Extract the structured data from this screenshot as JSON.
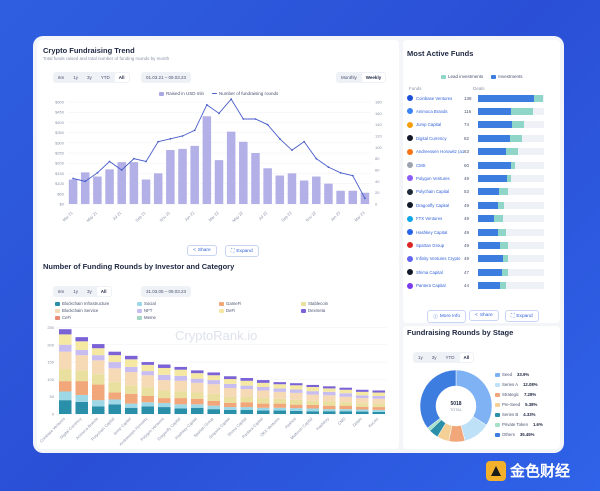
{
  "brand": {
    "name": "金色财经",
    "logo_icon": "golden-finance-logo-icon"
  },
  "watermark": "CryptoRank.io",
  "fundraising_trend": {
    "title": "Crypto Fundraising Trend",
    "subtitle": "Total funds raised and total number of funding rounds by month",
    "ranges": [
      "6m",
      "1y",
      "3y",
      "YTD",
      "All"
    ],
    "active_range": "All",
    "date_range": "01.03.21 – 09.03.23",
    "granularity": [
      "Monthly",
      "Weekly"
    ],
    "active_granularity": "Weekly",
    "share_label": "Share",
    "expand_label": "Expand",
    "legend": [
      "Raised in USD mln",
      "Number of fundraising rounds"
    ]
  },
  "funding_by_investor": {
    "title": "Number of Funding Rounds by Investor and Category",
    "ranges": [
      "6m",
      "1y",
      "3y",
      "All"
    ],
    "active_range": "All",
    "date_range": "31.03.05 – 09.03.23",
    "legend": [
      "Blockchain Infrastructure",
      "Social",
      "GameFi",
      "Stablecoin",
      "Blockchain Service",
      "NFT",
      "DeFi",
      "Dexmeta",
      "CeFi",
      "Meme"
    ]
  },
  "active_funds": {
    "title": "Most Active Funds",
    "legend": [
      "Lead investments",
      "Investments"
    ],
    "col_funds": "Funds",
    "col_deals": "Deals",
    "more_info_label": "More Info",
    "share_label": "Share",
    "expand_label": "Expand",
    "funds": [
      {
        "name": "Coinbase Ventures",
        "deals": "138",
        "lead": 0.85,
        "total": 0.98,
        "icon_color": "#1b4fd8"
      },
      {
        "name": "Animoca Brands",
        "deals": "116",
        "lead": 0.5,
        "total": 0.84,
        "icon_color": "#3b82f6"
      },
      {
        "name": "Jump Capital",
        "deals": "74",
        "lead": 0.52,
        "total": 0.7,
        "icon_color": "#f59e0b"
      },
      {
        "name": "Digital Currency",
        "deals": "82",
        "lead": 0.48,
        "total": 0.66,
        "icon_color": "#111827"
      },
      {
        "name": "Andreessen Horowitz (a16z)",
        "deals": "63",
        "lead": 0.42,
        "total": 0.6,
        "icon_color": "#f97316"
      },
      {
        "name": "CMS",
        "deals": "60",
        "lead": 0.5,
        "total": 0.56,
        "icon_color": "#9ca3af"
      },
      {
        "name": "Polygon Ventures",
        "deals": "49",
        "lead": 0.44,
        "total": 0.5,
        "icon_color": "#8b5cf6"
      },
      {
        "name": "Polychain Capital",
        "deals": "53",
        "lead": 0.32,
        "total": 0.46,
        "icon_color": "#1f2937"
      },
      {
        "name": "Dragonfly Capital",
        "deals": "49",
        "lead": 0.3,
        "total": 0.4,
        "icon_color": "#111827"
      },
      {
        "name": "FTX Ventures",
        "deals": "49",
        "lead": 0.24,
        "total": 0.38,
        "icon_color": "#0ea5e9"
      },
      {
        "name": "Hashkey Capital",
        "deals": "49",
        "lead": 0.3,
        "total": 0.42,
        "icon_color": "#2563eb"
      },
      {
        "name": "Spartan Group",
        "deals": "49",
        "lead": 0.34,
        "total": 0.46,
        "icon_color": "#dc2626"
      },
      {
        "name": "Infinity Ventures Crypto",
        "deals": "49",
        "lead": 0.38,
        "total": 0.46,
        "icon_color": "#6366f1"
      },
      {
        "name": "Shima Capital",
        "deals": "47",
        "lead": 0.36,
        "total": 0.46,
        "icon_color": "#111827"
      },
      {
        "name": "Pantera Capital",
        "deals": "44",
        "lead": 0.34,
        "total": 0.42,
        "icon_color": "#7c3aed"
      }
    ]
  },
  "rounds_by_stage": {
    "title": "Fundraising Rounds by Stage",
    "ranges": [
      "1y",
      "3y",
      "YTD",
      "All"
    ],
    "active_range": "All",
    "center_value": "5018",
    "center_label": "TOTAL",
    "stages": [
      {
        "name": "Seed",
        "pct": "33.9%",
        "value": 33.9,
        "color": "#7fb2f5"
      },
      {
        "name": "Series A",
        "pct": "12.08%",
        "value": 12.08,
        "color": "#bfe1f8"
      },
      {
        "name": "Strategic",
        "pct": "7.28%",
        "value": 7.28,
        "color": "#f2a77a"
      },
      {
        "name": "Pre-Seed",
        "pct": "5.38%",
        "value": 5.38,
        "color": "#f4cf96"
      },
      {
        "name": "Series B",
        "pct": "4.33%",
        "value": 4.33,
        "color": "#2a8fa8"
      },
      {
        "name": "Private Token",
        "pct": "1.6%",
        "value": 1.6,
        "color": "#a7e0c9"
      },
      {
        "name": "Others",
        "pct": "35.45%",
        "value": 35.45,
        "color": "#3d7de0"
      }
    ]
  },
  "chart_data": [
    {
      "type": "bar",
      "title": "Crypto Fundraising Trend",
      "y_left_ticks": [
        "$0",
        "$50",
        "$100",
        "$150",
        "$200",
        "$250",
        "$300",
        "$350",
        "$400",
        "$450",
        "$500"
      ],
      "y_right_ticks": [
        "0",
        "20",
        "40",
        "60",
        "80",
        "100",
        "120",
        "140",
        "160",
        "180"
      ],
      "categories": [
        "Mar 21",
        "Apr 21",
        "May 21",
        "Jun 21",
        "Jul 21",
        "Aug 21",
        "Sep 21",
        "Oct 21",
        "Nov 21",
        "Dec 21",
        "Jan 22",
        "Feb 22",
        "Mar 22",
        "Apr 22",
        "May 22",
        "Jun 22",
        "Jul 22",
        "Aug 22",
        "Sep 22",
        "Oct 22",
        "Nov 22",
        "Dec 22",
        "Jan 23",
        "Feb 23",
        "Mar 23"
      ],
      "x_tick_labels": [
        "Mar 21",
        "May 21",
        "Jul 21",
        "Sep 21",
        "Nov 21",
        "Jan 22",
        "Mar 22",
        "May 22",
        "Jul 22",
        "Sep 22",
        "Nov 22",
        "Jan 23",
        "Mar 23"
      ],
      "series": [
        {
          "name": "Raised in USD mln",
          "values": [
            120,
            155,
            135,
            170,
            205,
            205,
            120,
            150,
            265,
            270,
            285,
            430,
            215,
            355,
            305,
            250,
            175,
            140,
            150,
            115,
            135,
            100,
            65,
            65,
            55
          ]
        },
        {
          "name": "Number of fundraising rounds",
          "values": [
            45,
            40,
            55,
            75,
            60,
            80,
            75,
            110,
            115,
            120,
            130,
            175,
            160,
            185,
            150,
            150,
            140,
            115,
            95,
            110,
            80,
            65,
            55,
            50,
            10
          ]
        }
      ]
    },
    {
      "type": "bar",
      "title": "Number of Funding Rounds by Investor and Category",
      "y_ticks": [
        "0",
        "50",
        "100",
        "150",
        "200",
        "250"
      ],
      "categories": [
        "Coinbase Ventures",
        "Digital Currency",
        "Animoca Brands",
        "Polychain Capital",
        "Jump Capital",
        "Andreessen Horowitz",
        "Polygon Ventures",
        "Dragonfly Capital",
        "Hashkey Capital",
        "Spartan Group",
        "Sequoia Capital",
        "Shima Capital",
        "Pantera Capital",
        "OKX Ventures",
        "Hashed",
        "Multicoin Capital",
        "HashKey",
        "CMS",
        "Delphi",
        "Kucoin"
      ],
      "series": [
        {
          "name": "Blockchain Infrastructure",
          "values": [
            40,
            35,
            22,
            28,
            18,
            22,
            20,
            16,
            18,
            14,
            12,
            12,
            10,
            10,
            9,
            8,
            8,
            8,
            7,
            6
          ]
        },
        {
          "name": "Social",
          "values": [
            25,
            20,
            18,
            14,
            12,
            12,
            12,
            12,
            10,
            10,
            8,
            8,
            8,
            8,
            8,
            8,
            6,
            6,
            6,
            6
          ]
        },
        {
          "name": "GameFi",
          "values": [
            30,
            40,
            45,
            20,
            28,
            18,
            14,
            18,
            16,
            14,
            12,
            14,
            12,
            12,
            10,
            10,
            10,
            10,
            8,
            8
          ]
        },
        {
          "name": "Stablecoin",
          "values": [
            35,
            30,
            30,
            30,
            25,
            25,
            22,
            20,
            18,
            20,
            18,
            16,
            16,
            14,
            14,
            12,
            12,
            10,
            10,
            10
          ]
        },
        {
          "name": "Blockchain Service",
          "values": [
            50,
            45,
            40,
            40,
            38,
            35,
            30,
            30,
            28,
            28,
            25,
            22,
            22,
            20,
            20,
            18,
            18,
            16,
            15,
            14
          ]
        },
        {
          "name": "NFT",
          "values": [
            20,
            15,
            15,
            18,
            15,
            12,
            15,
            14,
            12,
            12,
            12,
            10,
            10,
            10,
            10,
            10,
            10,
            10,
            8,
            8
          ]
        },
        {
          "name": "DeFi",
          "values": [
            30,
            25,
            20,
            20,
            22,
            18,
            20,
            18,
            16,
            14,
            14,
            14,
            12,
            12,
            12,
            12,
            10,
            10,
            10,
            10
          ]
        },
        {
          "name": "Dexmeta",
          "values": [
            15,
            12,
            12,
            10,
            10,
            8,
            10,
            8,
            8,
            8,
            8,
            8,
            8,
            6,
            6,
            6,
            6,
            6,
            6,
            6
          ]
        }
      ]
    },
    {
      "type": "pie",
      "title": "Fundraising Rounds by Stage",
      "categories": [
        "Seed",
        "Series A",
        "Strategic",
        "Pre-Seed",
        "Series B",
        "Private Token",
        "Others"
      ],
      "values": [
        33.9,
        12.08,
        7.28,
        5.38,
        4.33,
        1.6,
        35.45
      ]
    }
  ]
}
